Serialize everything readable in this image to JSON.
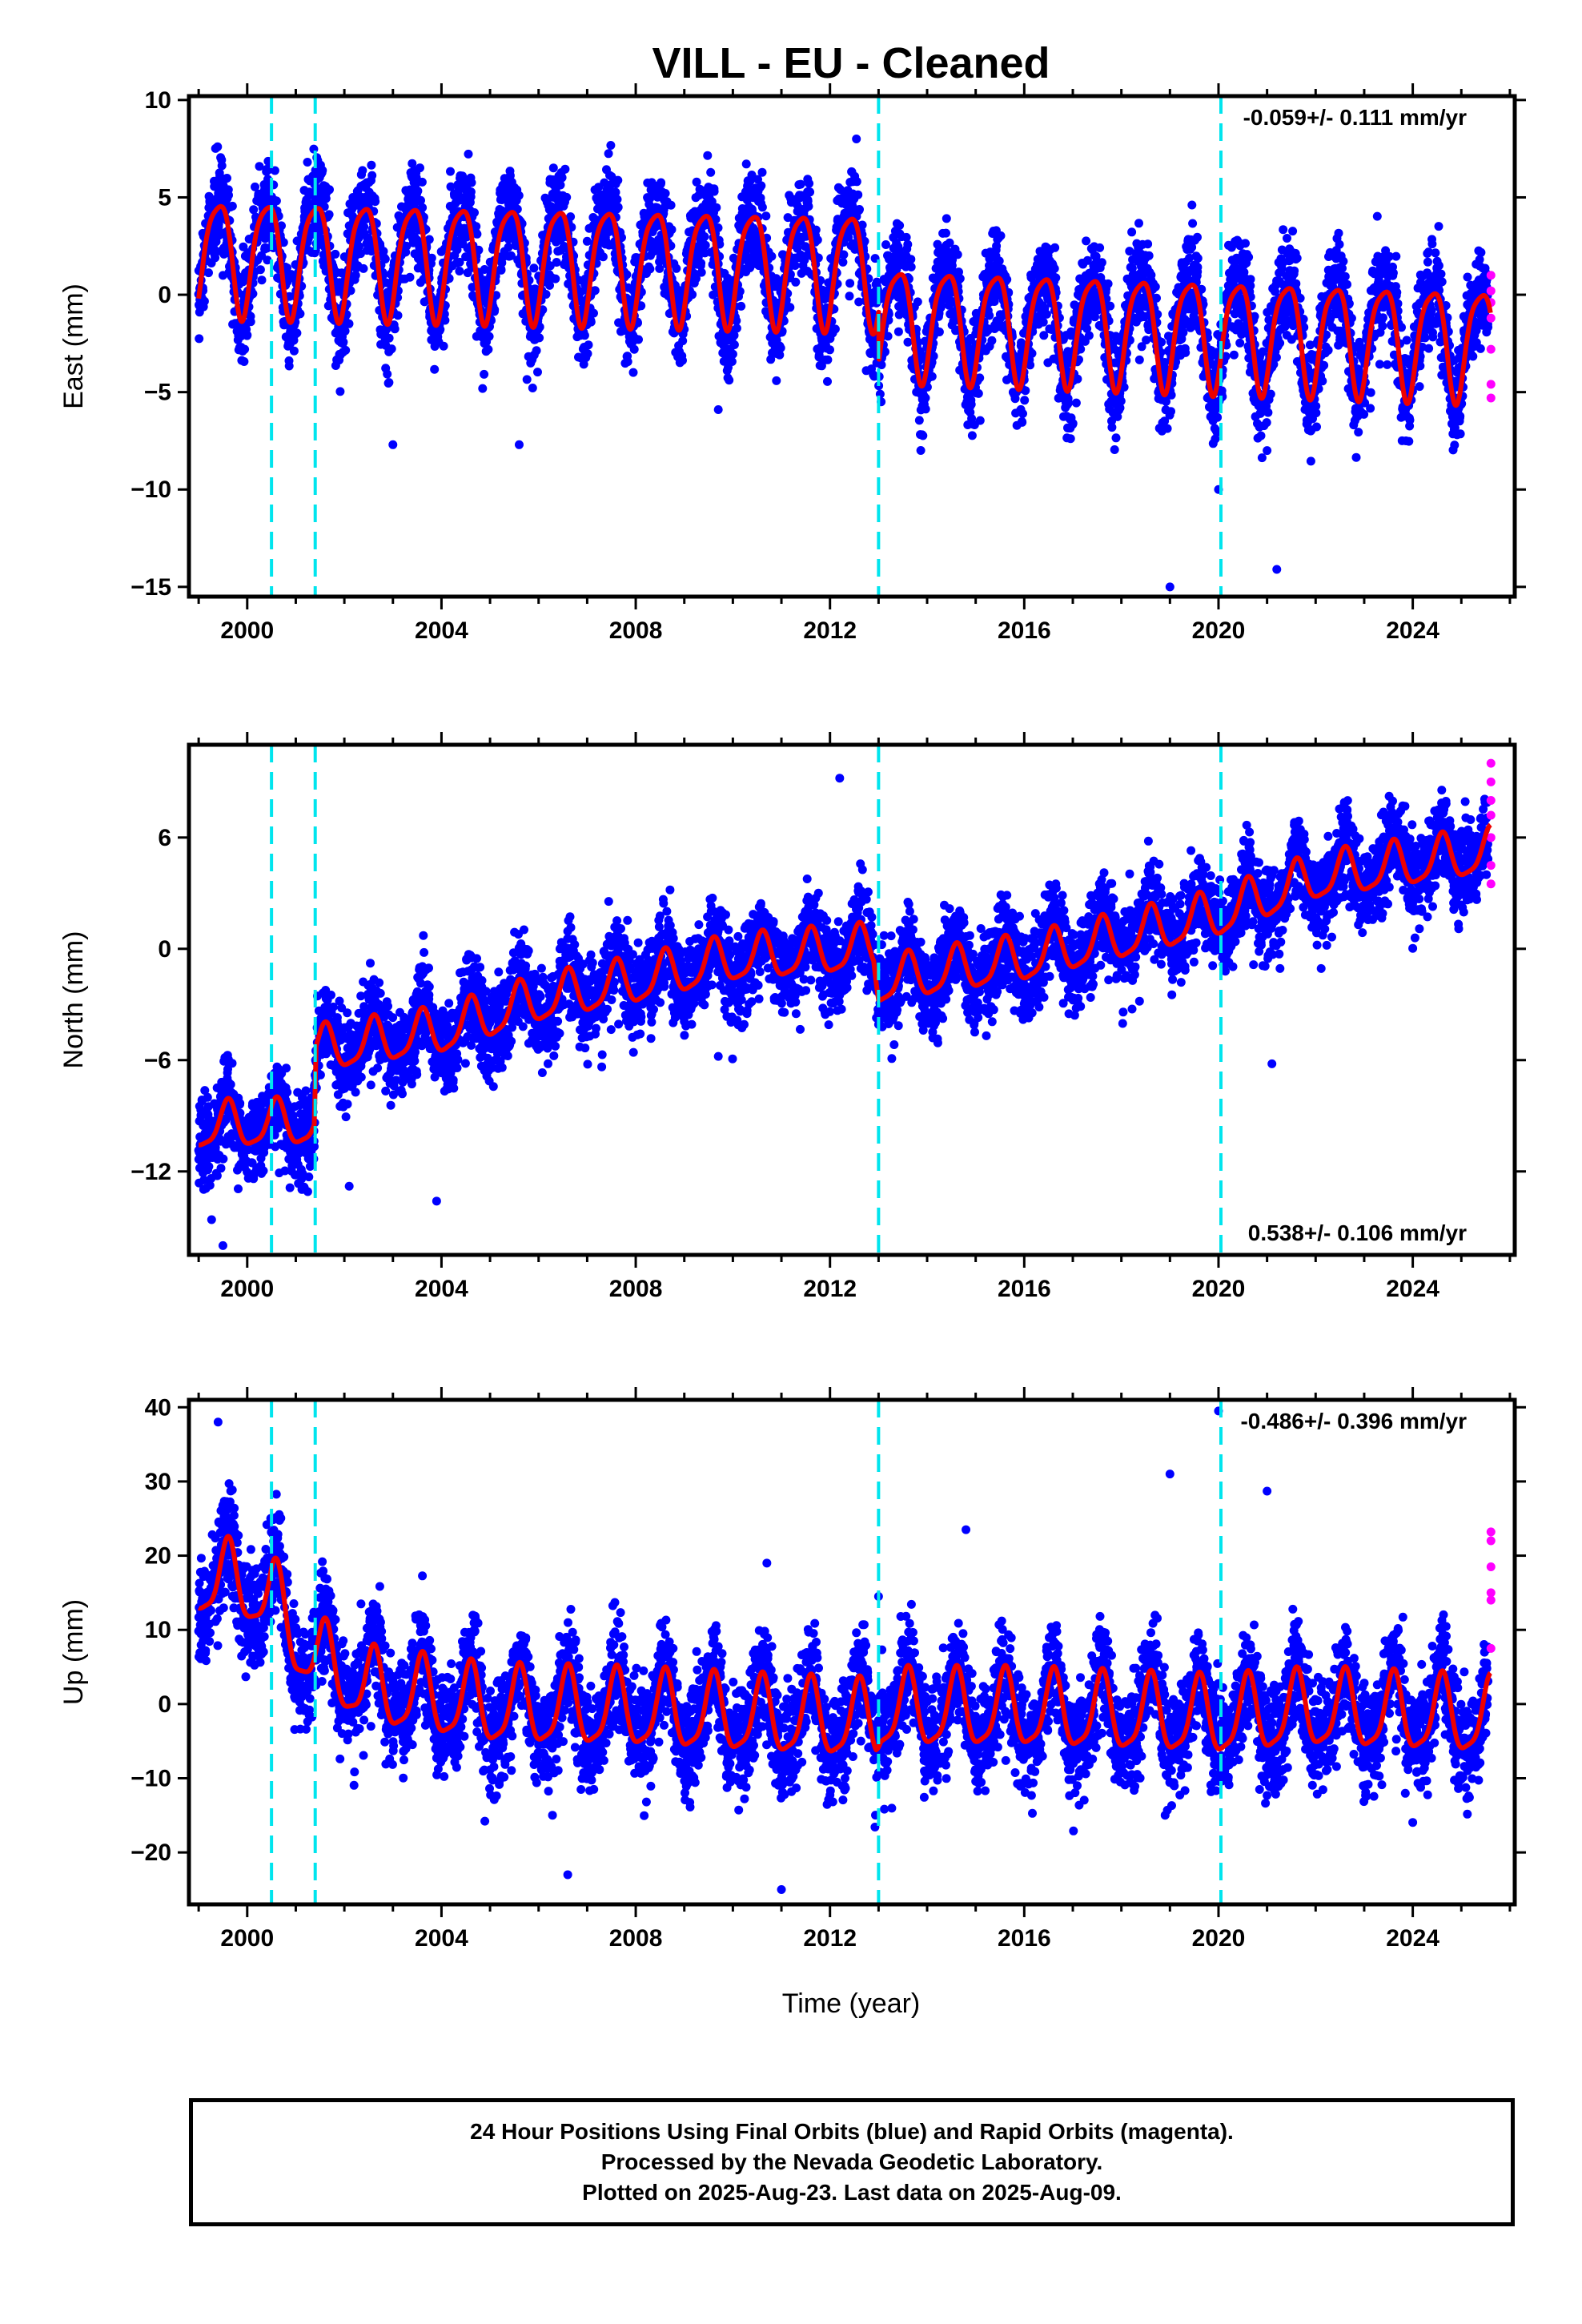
{
  "chart_data": [
    {
      "type": "scatter",
      "title": "VILL  - EU - Cleaned",
      "ylabel": "East (mm)",
      "rate": "-0.059+/- 0.111 mm/yr",
      "xlim": [
        1998.8,
        2026.1
      ],
      "ylim": [
        -15.5,
        10.2
      ],
      "yticks": [
        -15,
        -10,
        -5,
        0,
        5,
        10
      ],
      "xticks": [
        2000,
        2004,
        2008,
        2012,
        2016,
        2020,
        2024
      ],
      "ytick_labels": [
        "−15",
        "−10",
        "−5",
        "0",
        "5",
        "10"
      ],
      "xtick_labels": [
        "2000",
        "2004",
        "2008",
        "2012",
        "2016",
        "2020",
        "2024"
      ],
      "event_lines": [
        2000.5,
        2001.4,
        2013.0,
        2020.05
      ],
      "model": {
        "segments": [
          {
            "t0": 1999.0,
            "t1": 2012.95,
            "offset": 1.8,
            "rate": -0.05,
            "amp": 2.9
          },
          {
            "t0": 2013.0,
            "t1": 2025.6,
            "offset": -0.6,
            "rate": -0.09,
            "amp": 2.8
          }
        ]
      },
      "final_series": {
        "name": "Final Orbits",
        "color": "#0000ff",
        "t_start": 1999.0,
        "t_end": 2025.55,
        "noise": 1.8
      },
      "rapid_series": {
        "name": "Rapid Orbits",
        "color": "#ff00ff",
        "t_start": 2025.6,
        "t_end": 2025.62,
        "points": [
          [
            2025.61,
            1.0
          ],
          [
            2025.61,
            0.2
          ],
          [
            2025.61,
            -0.4
          ],
          [
            2025.61,
            -1.2
          ],
          [
            2025.61,
            -2.8
          ],
          [
            2025.61,
            -4.6
          ],
          [
            2025.61,
            -5.3
          ]
        ]
      },
      "outliers": [
        [
          2019.0,
          -15.0
        ],
        [
          2021.2,
          -14.1
        ],
        [
          2003.0,
          -7.7
        ],
        [
          2020.0,
          -10.0
        ],
        [
          2021.0,
          -8.0
        ],
        [
          2009.7,
          -5.9
        ],
        [
          2005.6,
          -7.7
        ]
      ]
    },
    {
      "type": "scatter",
      "ylabel": "North (mm)",
      "rate": "0.538+/- 0.106 mm/yr",
      "xlim": [
        1998.8,
        2026.1
      ],
      "ylim": [
        -16.5,
        11.0
      ],
      "yticks": [
        -12,
        -6,
        0,
        6
      ],
      "xticks": [
        2000,
        2004,
        2008,
        2012,
        2016,
        2020,
        2024
      ],
      "ytick_labels": [
        "−12",
        "−6",
        "0",
        "6"
      ],
      "xtick_labels": [
        "2000",
        "2004",
        "2008",
        "2012",
        "2016",
        "2020",
        "2024"
      ],
      "event_lines": [
        2000.5,
        2001.4,
        2013.0,
        2020.05
      ],
      "model": {
        "knots": [
          [
            1999.0,
            -9.6
          ],
          [
            2001.38,
            -9.4
          ],
          [
            2001.42,
            -5.5
          ],
          [
            2004.0,
            -4.5
          ],
          [
            2006.0,
            -2.8
          ],
          [
            2008.0,
            -1.8
          ],
          [
            2010.0,
            -0.6
          ],
          [
            2012.9,
            0.0
          ],
          [
            2013.0,
            -1.8
          ],
          [
            2016.0,
            -0.6
          ],
          [
            2020.0,
            1.8
          ],
          [
            2022.0,
            3.8
          ],
          [
            2025.6,
            5.2
          ]
        ],
        "amp": 1.2
      },
      "final_series": {
        "name": "Final Orbits",
        "color": "#0000ff",
        "t_start": 1999.0,
        "t_end": 2025.55,
        "noise": 1.7
      },
      "rapid_series": {
        "name": "Rapid Orbits",
        "color": "#ff00ff",
        "t_start": 2025.6,
        "t_end": 2025.62,
        "points": [
          [
            2025.61,
            10.0
          ],
          [
            2025.61,
            9.0
          ],
          [
            2025.61,
            8.0
          ],
          [
            2025.61,
            7.2
          ],
          [
            2025.61,
            6.0
          ],
          [
            2025.61,
            4.5
          ],
          [
            2025.61,
            3.5
          ]
        ]
      },
      "outliers": [
        [
          2012.2,
          9.2
        ],
        [
          2002.1,
          -12.8
        ],
        [
          2003.9,
          -13.6
        ],
        [
          2021.1,
          -6.2
        ],
        [
          2009.7,
          -5.8
        ],
        [
          1999.5,
          -16.0
        ]
      ]
    },
    {
      "type": "scatter",
      "xlabel": "Time (year)",
      "ylabel": "Up (mm)",
      "rate": "-0.486+/- 0.396 mm/yr",
      "xlim": [
        1998.8,
        2026.1
      ],
      "ylim": [
        -27.0,
        41.0
      ],
      "yticks": [
        -20,
        -10,
        0,
        10,
        20,
        30,
        40
      ],
      "xticks": [
        2000,
        2004,
        2008,
        2012,
        2016,
        2020,
        2024
      ],
      "ytick_labels": [
        "−20",
        "−10",
        "0",
        "10",
        "20",
        "30",
        "40"
      ],
      "xtick_labels": [
        "2000",
        "2004",
        "2008",
        "2012",
        "2016",
        "2020",
        "2024"
      ],
      "event_lines": [
        2000.5,
        2001.4,
        2013.0,
        2020.05
      ],
      "model": {
        "knots": [
          [
            1999.0,
            17.0
          ],
          [
            2000.0,
            16.0
          ],
          [
            2000.55,
            14.0
          ],
          [
            2001.0,
            9.0
          ],
          [
            2001.45,
            6.0
          ],
          [
            2002.5,
            2.0
          ],
          [
            2005.0,
            -0.5
          ],
          [
            2008.0,
            -1.0
          ],
          [
            2011.0,
            -2.0
          ],
          [
            2012.95,
            -2.5
          ],
          [
            2013.05,
            -1.0
          ],
          [
            2016.0,
            -1.0
          ],
          [
            2020.0,
            -2.0
          ],
          [
            2022.0,
            -1.0
          ],
          [
            2025.6,
            -2.0
          ]
        ],
        "amp": 5.0
      },
      "final_series": {
        "name": "Final Orbits",
        "color": "#0000ff",
        "t_start": 1999.0,
        "t_end": 2025.55,
        "noise": 5.0
      },
      "rapid_series": {
        "name": "Rapid Orbits",
        "color": "#ff00ff",
        "t_start": 2025.6,
        "t_end": 2025.62,
        "points": [
          [
            2025.61,
            23.2
          ],
          [
            2025.61,
            22.0
          ],
          [
            2025.61,
            18.5
          ],
          [
            2025.61,
            15.0
          ],
          [
            2025.61,
            14.0
          ],
          [
            2025.61,
            7.5
          ]
        ]
      },
      "outliers": [
        [
          2019.0,
          31.0
        ],
        [
          2021.0,
          28.7
        ],
        [
          2020.0,
          39.5
        ],
        [
          2014.8,
          23.5
        ],
        [
          2013.0,
          14.5
        ],
        [
          2010.7,
          19.0
        ],
        [
          1999.4,
          38.0
        ],
        [
          2006.6,
          -23.0
        ],
        [
          2011.0,
          -25.0
        ]
      ]
    }
  ],
  "caption": {
    "line1": "24 Hour Positions Using Final Orbits (blue) and Rapid Orbits (magenta).",
    "line2": "Processed by the Nevada Geodetic Laboratory.",
    "line3": "Plotted on 2025-Aug-23. Last data on 2025-Aug-09."
  },
  "colors": {
    "final": "#0000ff",
    "rapid": "#ff00ff",
    "model": "#ee0000",
    "event": "#00e5ee"
  }
}
